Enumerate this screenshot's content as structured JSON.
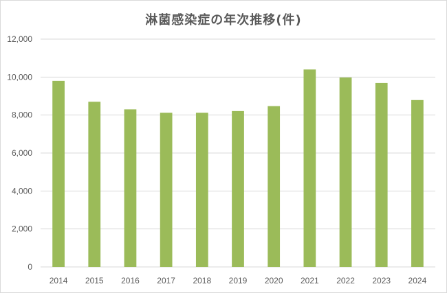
{
  "chart_data": {
    "type": "bar",
    "title": "淋菌感染症の年次推移(件)",
    "xlabel": "",
    "ylabel": "",
    "categories": [
      "2014",
      "2015",
      "2016",
      "2017",
      "2018",
      "2019",
      "2020",
      "2021",
      "2022",
      "2023",
      "2024"
    ],
    "values": [
      9800,
      8700,
      8300,
      8120,
      8120,
      8210,
      8470,
      10400,
      9980,
      9690,
      8790
    ],
    "ylim": [
      0,
      12000
    ],
    "yticks": [
      0,
      2000,
      4000,
      6000,
      8000,
      10000,
      12000
    ],
    "ytick_labels": [
      "0",
      "2,000",
      "4,000",
      "6,000",
      "8,000",
      "10,000",
      "12,000"
    ],
    "grid": true,
    "legend": "none",
    "bar_color": "#9bbb59",
    "grid_color": "#d9d9d9"
  }
}
